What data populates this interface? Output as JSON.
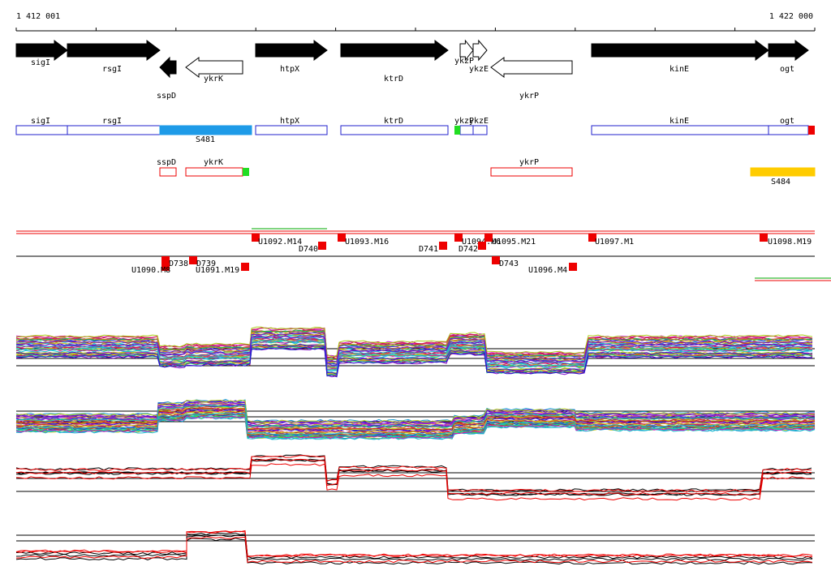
{
  "ruler": {
    "start": "1 412 001",
    "end": "1 422 000"
  },
  "genes": [
    "sigI",
    "rsgI",
    "sspD",
    "ykrK",
    "htpX",
    "ktrD",
    "ykzP",
    "ykzE",
    "ykrP",
    "kinE",
    "ogt"
  ],
  "gene_boxes": [
    "sigI",
    "rsgI",
    "S481",
    "htpX",
    "ktrD",
    "ykzP",
    "ykzE",
    "kinE",
    "ogt"
  ],
  "lower_boxes": [
    "sspD",
    "ykrK",
    "ykrP",
    "S484"
  ],
  "transcripts": [
    "U1092.M14",
    "D740",
    "U1093.M16",
    "D741",
    "U1094.M6",
    "U1095.M21",
    "D742",
    "U1097.M1",
    "U1098.M19",
    "D738",
    "D739",
    "U1090.M8",
    "U1091.M19",
    "D743",
    "U1096.M4"
  ]
}
